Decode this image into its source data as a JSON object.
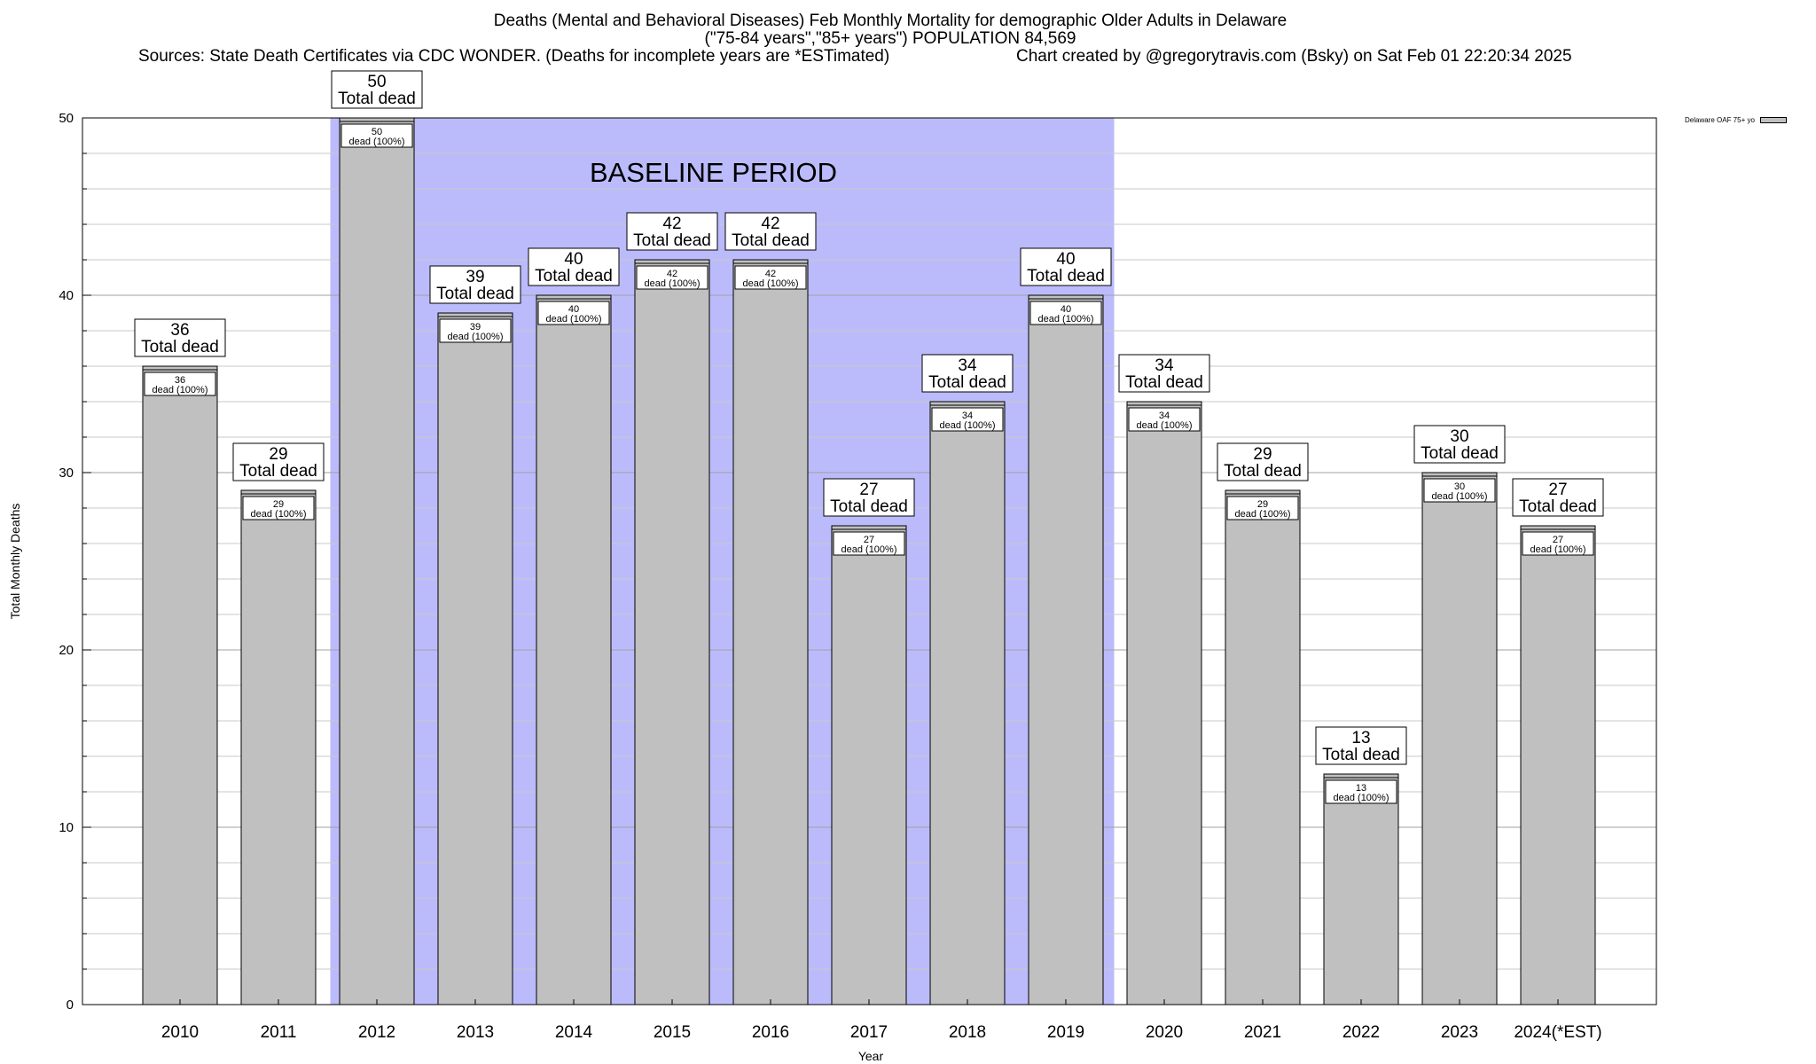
{
  "chart_data": {
    "type": "bar",
    "title_line1": "Deaths (Mental and Behavioral Diseases) Feb Monthly Mortality for demographic Older Adults in Delaware",
    "title_line2": "(\"75-84 years\",\"85+ years\") POPULATION 84,569",
    "sources": "Sources: State Death Certificates via CDC WONDER. (Deaths for incomplete years are *ESTimated)",
    "credit": "Chart created by @gregorytravis.com (Bsky) on Sat Feb 01 22:20:34 2025",
    "xlabel": "Year",
    "ylabel": "Total Monthly Deaths",
    "ylim": [
      0,
      50
    ],
    "yticks": [
      0,
      10,
      20,
      30,
      40,
      50
    ],
    "grid": true,
    "legend": {
      "label": "Delaware OAF 75+ yo",
      "position": "top-right"
    },
    "baseline": {
      "label": "BASELINE PERIOD",
      "from": "2012",
      "to": "2019",
      "color": "#bbbbfc"
    },
    "bar_color": "#c0c0c0",
    "categories": [
      "2010",
      "2011",
      "2012",
      "2013",
      "2014",
      "2015",
      "2016",
      "2017",
      "2018",
      "2019",
      "2020",
      "2021",
      "2022",
      "2023",
      "2024(*EST)"
    ],
    "values": [
      36,
      29,
      50,
      39,
      40,
      42,
      42,
      27,
      34,
      40,
      34,
      29,
      13,
      30,
      27
    ],
    "total_label": "Total dead",
    "inner_label": "dead (100%)"
  }
}
